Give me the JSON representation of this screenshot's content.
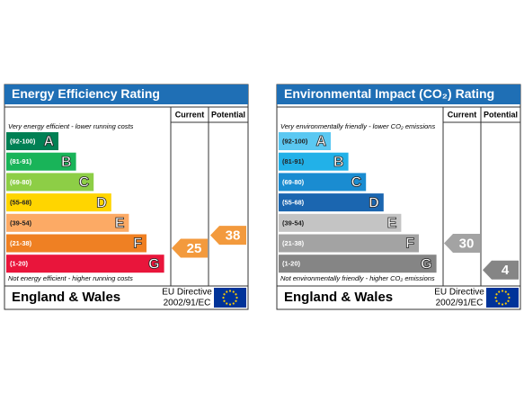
{
  "panels": [
    {
      "title": "Energy Efficiency Rating",
      "header_color": "#1f6fb5",
      "columns": [
        "Current",
        "Potential"
      ],
      "top_note": "Very energy efficient - lower running costs",
      "bottom_note": "Not energy efficient - higher running costs",
      "bands": [
        {
          "range": "(92-100)",
          "letter": "A",
          "color": "#008054",
          "text_color": "#ffffff"
        },
        {
          "range": "(81-91)",
          "letter": "B",
          "color": "#19b459",
          "text_color": "#ffffff"
        },
        {
          "range": "(69-80)",
          "letter": "C",
          "color": "#8dce46",
          "text_color": "#ffffff"
        },
        {
          "range": "(55-68)",
          "letter": "D",
          "color": "#ffd500",
          "text_color": "#222222"
        },
        {
          "range": "(39-54)",
          "letter": "E",
          "color": "#fcaa65",
          "text_color": "#222222"
        },
        {
          "range": "(21-38)",
          "letter": "F",
          "color": "#ef8023",
          "text_color": "#ffffff"
        },
        {
          "range": "(1-20)",
          "letter": "G",
          "color": "#e9153b",
          "text_color": "#ffffff"
        }
      ],
      "current": 25,
      "potential": 38,
      "current_color": "#f39a3d",
      "potential_color": "#f39a3d",
      "footer": {
        "region": "England & Wales",
        "directive": "EU Directive",
        "code": "2002/91/EC"
      }
    },
    {
      "title": "Environmental Impact (CO₂) Rating",
      "header_color": "#1f6fb5",
      "columns": [
        "Current",
        "Potential"
      ],
      "top_note": "Very environmentally friendly - lower CO₂ emissions",
      "bottom_note": "Not environmentally friendly - higher CO₂ emissions",
      "bands": [
        {
          "range": "(92-100)",
          "letter": "A",
          "color": "#5bc8f2",
          "text_color": "#222222"
        },
        {
          "range": "(81-91)",
          "letter": "B",
          "color": "#22b1e8",
          "text_color": "#222222"
        },
        {
          "range": "(69-80)",
          "letter": "C",
          "color": "#1a8cd1",
          "text_color": "#ffffff"
        },
        {
          "range": "(55-68)",
          "letter": "D",
          "color": "#1b66b0",
          "text_color": "#ffffff"
        },
        {
          "range": "(39-54)",
          "letter": "E",
          "color": "#c4c4c4",
          "text_color": "#222222"
        },
        {
          "range": "(21-38)",
          "letter": "F",
          "color": "#a3a3a3",
          "text_color": "#ffffff"
        },
        {
          "range": "(1-20)",
          "letter": "G",
          "color": "#858585",
          "text_color": "#ffffff"
        }
      ],
      "current": 30,
      "potential": 4,
      "current_color": "#a3a3a3",
      "potential_color": "#858585",
      "footer": {
        "region": "England & Wales",
        "directive": "EU Directive",
        "code": "2002/91/EC"
      }
    }
  ]
}
